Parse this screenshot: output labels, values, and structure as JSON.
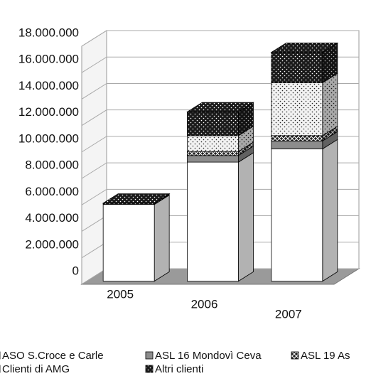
{
  "chart_data": {
    "type": "bar3d_stacked",
    "categories": [
      "2005",
      "2006",
      "2007"
    ],
    "series": [
      {
        "name": "ASO S.Croce e Carle",
        "color": "#ffffff",
        "pattern": "none",
        "values": [
          5800000,
          9000000,
          10000000
        ]
      },
      {
        "name": "ASL 16 Mondovì Ceva",
        "color": "#8c8c8c",
        "pattern": "none",
        "values": [
          0,
          500000,
          600000
        ]
      },
      {
        "name": "ASL 19 As",
        "color": "#222222",
        "pattern": "hatch",
        "values": [
          0,
          300000,
          400000
        ]
      },
      {
        "name": "Clienti di AMG",
        "color": "#f2f2f2",
        "pattern": "dots",
        "values": [
          0,
          1200000,
          4000000
        ]
      },
      {
        "name": "Altri clienti",
        "color": "#1a1a1a",
        "pattern": "dots",
        "values": [
          100000,
          1800000,
          2300000
        ]
      }
    ],
    "ylim": [
      0,
      18000000
    ],
    "yticks": [
      0,
      {
        "value": 2000000,
        "label": "2.000.000"
      },
      {
        "value": 4000000,
        "label": "4.000.000"
      },
      {
        "value": 6000000,
        "label": "6.000.000"
      },
      {
        "value": 8000000,
        "label": "8.000.000"
      },
      {
        "value": 10000000,
        "label": "10.000.000"
      },
      {
        "value": 12000000,
        "label": "12.000.000"
      },
      {
        "value": 14000000,
        "label": "14.000.000"
      },
      {
        "value": 16000000,
        "label": "16.000.000"
      },
      {
        "value": 18000000,
        "label": "18.000.000"
      }
    ],
    "grid": true
  }
}
